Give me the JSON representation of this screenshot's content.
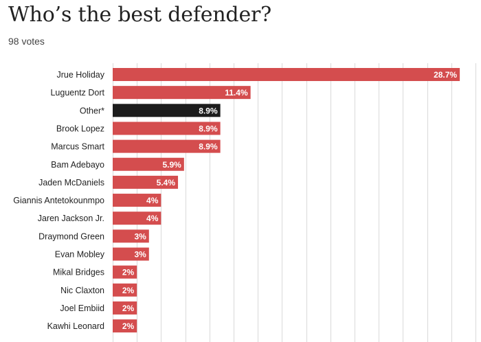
{
  "header": {
    "title": "Who’s the best defender?",
    "votes": "98 votes"
  },
  "colors": {
    "bar": "#d44d4e",
    "highlight": "#1c1c1c",
    "grid": "#d9d9d9",
    "text": "#222222"
  },
  "chart_data": {
    "type": "bar",
    "orientation": "horizontal",
    "title": "Who’s the best defender?",
    "subtitle": "98 votes",
    "xlabel": "",
    "ylabel": "",
    "xlim": [
      0,
      30
    ],
    "grid": true,
    "categories": [
      "Jrue Holiday",
      "Luguentz Dort",
      "Other*",
      "Brook Lopez",
      "Marcus Smart",
      "Bam Adebayo",
      "Jaden McDaniels",
      "Giannis Antetokounmpo",
      "Jaren Jackson Jr.",
      "Draymond Green",
      "Evan Mobley",
      "Mikal Bridges",
      "Nic Claxton",
      "Joel Embiid",
      "Kawhi Leonard"
    ],
    "values": [
      28.7,
      11.4,
      8.9,
      8.9,
      8.9,
      5.9,
      5.4,
      4,
      4,
      3,
      3,
      2,
      2,
      2,
      2
    ],
    "value_labels": [
      "28.7%",
      "11.4%",
      "8.9%",
      "8.9%",
      "8.9%",
      "5.9%",
      "5.4%",
      "4%",
      "4%",
      "3%",
      "3%",
      "2%",
      "2%",
      "2%",
      "2%"
    ],
    "highlight": [
      "Other*"
    ]
  }
}
